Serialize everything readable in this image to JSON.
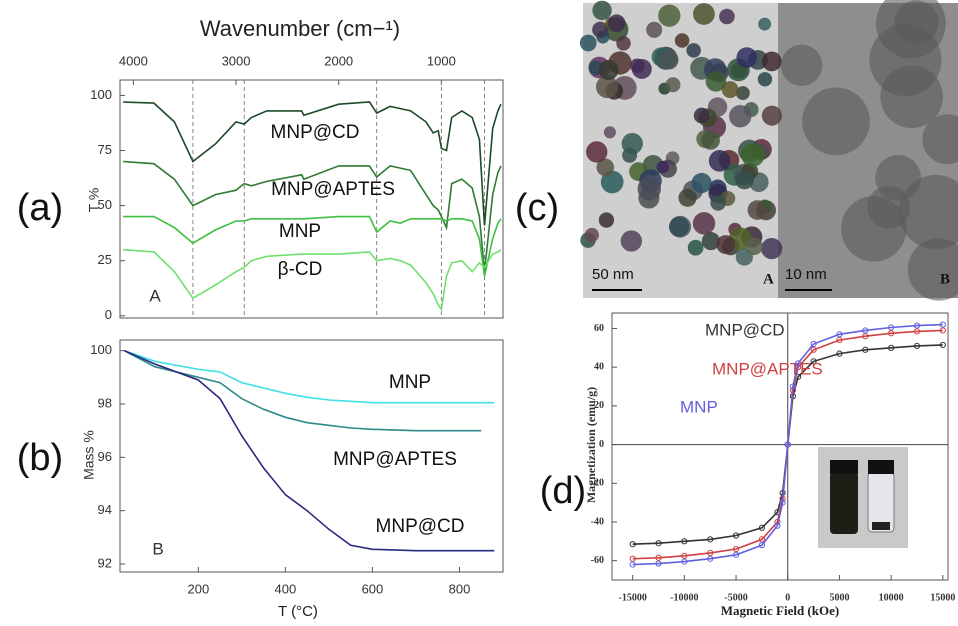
{
  "chart_data": [
    {
      "type": "line",
      "panel_label": "(a)",
      "panel_letter": "A",
      "x_label": "Wavenumber (cm−¹)",
      "y_label": "T %",
      "xlim": [
        4130,
        400
      ],
      "xticks": [
        4000,
        3000,
        2000,
        1000
      ],
      "ylim": [
        -1,
        107
      ],
      "yticks": [
        0,
        25,
        50,
        75,
        100
      ],
      "reference_lines": [
        3420,
        2920,
        1630,
        1000,
        580
      ],
      "x": [
        4100,
        3800,
        3600,
        3420,
        3200,
        3000,
        2920,
        2850,
        2700,
        2360,
        2340,
        2000,
        1700,
        1630,
        1500,
        1400,
        1300,
        1150,
        1080,
        1030,
        1000,
        950,
        900,
        800,
        700,
        630,
        580,
        500,
        450,
        420
      ],
      "series": [
        {
          "name": "MNP@CD",
          "color": "#1e4a28",
          "values": [
            97,
            96.5,
            88,
            70,
            78,
            88,
            87,
            90,
            93,
            93,
            91,
            96,
            97,
            92,
            95,
            94,
            93,
            88,
            83,
            84,
            76,
            75,
            90,
            93,
            90,
            80,
            41,
            85,
            93,
            96
          ]
        },
        {
          "name": "MNP@APTES",
          "color": "#2f7a34",
          "values": [
            70,
            69,
            62,
            50,
            55,
            57,
            60,
            59,
            61,
            64,
            62,
            68,
            68,
            63,
            68,
            67,
            66,
            55,
            50,
            48,
            45,
            40,
            60,
            62,
            58,
            45,
            20,
            55,
            65,
            68
          ]
        },
        {
          "name": "MNP",
          "color": "#3fbf3f",
          "values": [
            45,
            45,
            40,
            33,
            39,
            43,
            43,
            44,
            44,
            44,
            44,
            45,
            45,
            38,
            43,
            42,
            44,
            44,
            44,
            44,
            44,
            43,
            44,
            44,
            43,
            35,
            18,
            35,
            42,
            44
          ]
        },
        {
          "name": "β-CD",
          "color": "#6ee06e",
          "values": [
            30,
            29,
            20,
            8,
            14,
            20,
            22,
            25,
            27,
            28,
            28,
            28,
            29,
            25,
            26,
            25,
            23,
            15,
            10,
            5,
            3,
            18,
            24,
            25,
            20,
            24,
            22,
            28,
            29,
            30
          ]
        }
      ]
    },
    {
      "type": "line",
      "panel_label": "(b)",
      "panel_letter": "B",
      "x_label": "T (°C)",
      "y_label": "Mass %",
      "xlim": [
        20,
        900
      ],
      "xticks": [
        200,
        400,
        600,
        800
      ],
      "ylim": [
        91.7,
        100.4
      ],
      "yticks": [
        92,
        94,
        96,
        98,
        100
      ],
      "x": [
        30,
        100,
        200,
        250,
        300,
        350,
        400,
        450,
        500,
        550,
        600,
        700,
        850,
        880
      ],
      "series": [
        {
          "name": "MNP",
          "color": "#3fe0e6",
          "values": [
            100,
            99.6,
            99.3,
            99.2,
            98.8,
            98.6,
            98.4,
            98.25,
            98.15,
            98.1,
            98.05,
            98.05,
            98.05,
            98.05
          ]
        },
        {
          "name": "MNP@APTES",
          "color": "#2e8b8b",
          "values": [
            100,
            99.4,
            99.0,
            98.8,
            98.2,
            97.8,
            97.5,
            97.3,
            97.2,
            97.1,
            97.05,
            97.0,
            97.0,
            null
          ]
        },
        {
          "name": "MNP@CD",
          "color": "#2a2a80",
          "values": [
            100,
            99.5,
            98.9,
            98.2,
            96.8,
            95.6,
            94.6,
            94.0,
            93.3,
            92.7,
            92.55,
            92.5,
            92.5,
            92.5
          ]
        }
      ]
    },
    {
      "type": "line",
      "panel_label": "(d)",
      "markers": true,
      "zero_lines": true,
      "legend_colored": true,
      "x_label": "Magnetic Field (kOe)",
      "y_label": "Magnetization (emu/g)",
      "xlim": [
        -17000,
        15500
      ],
      "xticks": [
        -15000,
        -10000,
        -5000,
        0,
        5000,
        10000,
        15000
      ],
      "ylim": [
        -70,
        68
      ],
      "yticks": [
        -60,
        -40,
        -20,
        0,
        20,
        40,
        60
      ],
      "x": [
        -15000,
        -12500,
        -10000,
        -7500,
        -5000,
        -2500,
        -1000,
        -500,
        0,
        500,
        1000,
        2500,
        5000,
        7500,
        10000,
        12500,
        15000
      ],
      "series": [
        {
          "name": "MNP@CD",
          "color": "#333333",
          "values": [
            -51.5,
            -51,
            -50,
            -49,
            -47,
            -43,
            -35,
            -25,
            0,
            25,
            35,
            43,
            47,
            49,
            50,
            51,
            51.5
          ]
        },
        {
          "name": "MNP@APTES",
          "color": "#d04040",
          "values": [
            -59,
            -58.5,
            -57.5,
            -56,
            -54,
            -49,
            -40,
            -28,
            0,
            28,
            40,
            49,
            54,
            56,
            57.5,
            58.5,
            59
          ]
        },
        {
          "name": "MNP",
          "color": "#6060e0",
          "values": [
            -62,
            -61.5,
            -60.5,
            -59,
            -57,
            -52,
            -42,
            -30,
            0,
            30,
            42,
            52,
            57,
            59,
            60.5,
            61.5,
            62
          ]
        }
      ]
    }
  ],
  "images": {
    "panel_label": "(c)",
    "left": {
      "scale": "50 nm",
      "letter": "A"
    },
    "right": {
      "scale": "10 nm",
      "letter": "B"
    }
  }
}
